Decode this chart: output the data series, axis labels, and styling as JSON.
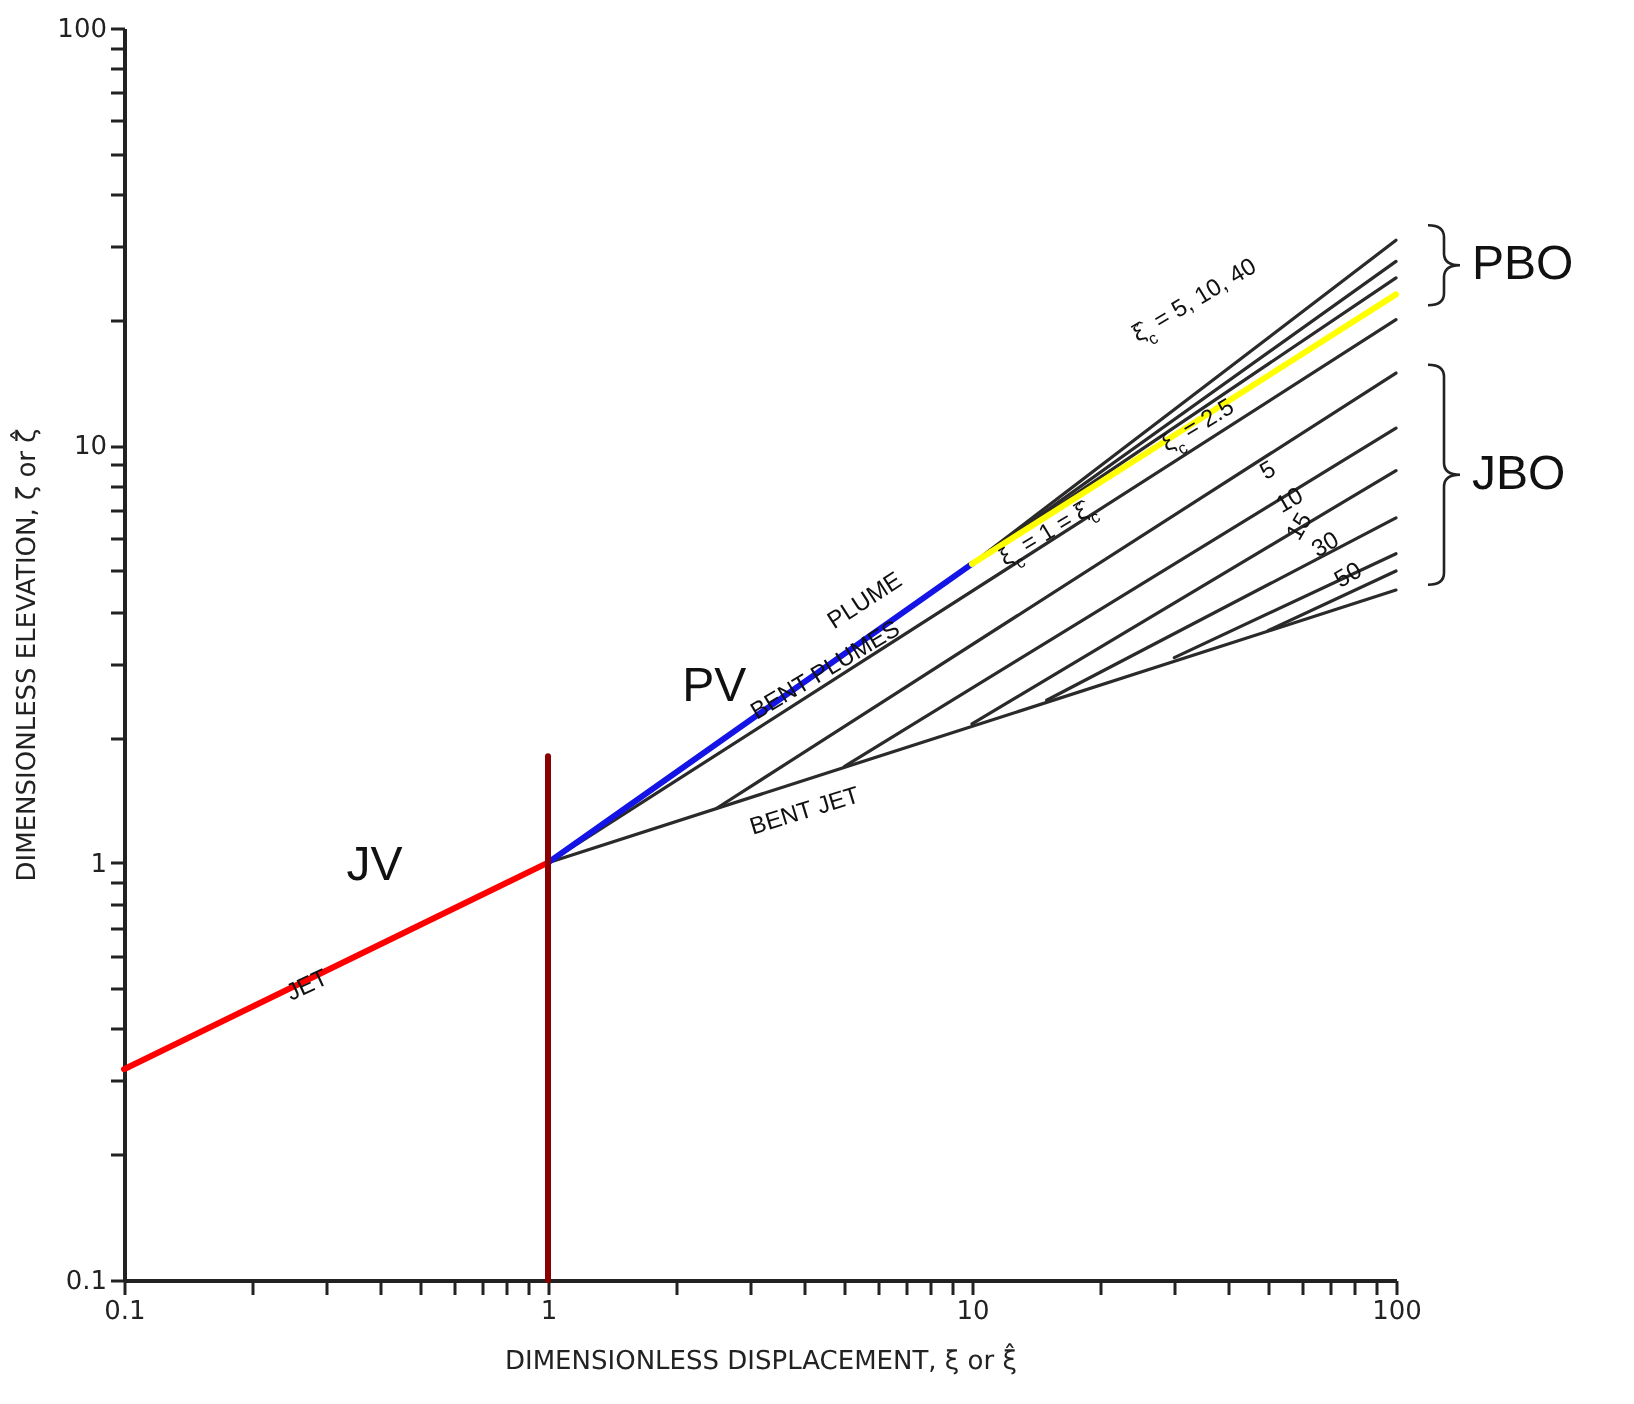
{
  "chart_data": {
    "type": "line",
    "xlabel": "DIMENSIONLESS DISPLACEMENT, ξ or ξ̂",
    "ylabel": "DIMENSIONLESS ELEVATION, ζ or ζ̂",
    "log": "xy",
    "xlim": [
      0.1,
      100
    ],
    "ylim": [
      0.1,
      100
    ],
    "xticks": [
      0.1,
      {
        "value": 0.2,
        "label": null
      },
      {
        "value": 0.3,
        "label": null
      },
      {
        "value": 0.4,
        "label": null
      },
      {
        "value": 0.5,
        "label": null
      },
      {
        "value": 0.6,
        "label": null
      },
      {
        "value": 0.7,
        "label": null
      },
      {
        "value": 0.8,
        "label": null
      },
      {
        "value": 0.9,
        "label": null
      },
      1,
      {
        "value": 2,
        "label": null
      },
      {
        "value": 3,
        "label": null
      },
      {
        "value": 4,
        "label": null
      },
      {
        "value": 5,
        "label": null
      },
      {
        "value": 6,
        "label": null
      },
      {
        "value": 7,
        "label": null
      },
      {
        "value": 8,
        "label": null
      },
      {
        "value": 9,
        "label": null
      },
      10,
      {
        "value": 20,
        "label": null
      },
      {
        "value": 30,
        "label": null
      },
      {
        "value": 40,
        "label": null
      },
      {
        "value": 50,
        "label": null
      },
      {
        "value": 60,
        "label": null
      },
      {
        "value": 70,
        "label": null
      },
      {
        "value": 80,
        "label": null
      },
      {
        "value": 90,
        "label": null
      },
      100
    ],
    "yticks": [
      0.1,
      {
        "value": 0.2,
        "label": null
      },
      {
        "value": 0.3,
        "label": null
      },
      {
        "value": 0.4,
        "label": null
      },
      {
        "value": 0.5,
        "label": null
      },
      {
        "value": 0.6,
        "label": null
      },
      {
        "value": 0.7,
        "label": null
      },
      {
        "value": 0.8,
        "label": null
      },
      {
        "value": 0.9,
        "label": null
      },
      1,
      {
        "value": 2,
        "label": null
      },
      {
        "value": 3,
        "label": null
      },
      {
        "value": 4,
        "label": null
      },
      {
        "value": 5,
        "label": null
      },
      {
        "value": 6,
        "label": null
      },
      {
        "value": 7,
        "label": null
      },
      {
        "value": 8,
        "label": null
      },
      {
        "value": 9,
        "label": null
      },
      10,
      {
        "value": 20,
        "label": null
      },
      {
        "value": 30,
        "label": null
      },
      {
        "value": 40,
        "label": null
      },
      {
        "value": 50,
        "label": null
      },
      {
        "value": 60,
        "label": null
      },
      {
        "value": 70,
        "label": null
      },
      {
        "value": 80,
        "label": null
      },
      {
        "value": 90,
        "label": null
      },
      100
    ],
    "series": [
      {
        "color": "#2a2a2a",
        "x": [
          10,
          100
        ],
        "values": [
          5.2,
          31
        ]
      },
      {
        "color": "#2a2a2a",
        "x": [
          10,
          100
        ],
        "values": [
          5.2,
          27.6
        ]
      },
      {
        "color": "#2a2a2a",
        "x": [
          10,
          100
        ],
        "values": [
          5.2,
          25.2
        ]
      },
      {
        "color": "#2a2a2a",
        "x": [
          1,
          100
        ],
        "values": [
          1,
          20
        ]
      },
      {
        "color": "#2a2a2a",
        "x": [
          2.5,
          100
        ],
        "values": [
          1.35,
          14.9
        ]
      },
      {
        "color": "#2a2a2a",
        "x": [
          5,
          100
        ],
        "values": [
          1.7,
          11
        ]
      },
      {
        "color": "#2a2a2a",
        "x": [
          10,
          100
        ],
        "values": [
          2.15,
          8.7
        ]
      },
      {
        "color": "#2a2a2a",
        "x": [
          15,
          100
        ],
        "values": [
          2.45,
          6.7
        ]
      },
      {
        "color": "#2a2a2a",
        "x": [
          30,
          100
        ],
        "values": [
          3.1,
          5.5
        ]
      },
      {
        "color": "#2a2a2a",
        "x": [
          50,
          100
        ],
        "values": [
          3.6,
          5.0
        ]
      },
      {
        "color": "#2a2a2a",
        "x": [
          1,
          100
        ],
        "values": [
          1,
          4.5
        ]
      },
      {
        "color": "#ff0000",
        "x": [
          0.1,
          1
        ],
        "values": [
          0.32,
          1
        ]
      },
      {
        "color": "#1414e6",
        "x": [
          1,
          10
        ],
        "values": [
          1,
          5.2
        ]
      },
      {
        "color": "#ffff00",
        "x": [
          10,
          100
        ],
        "values": [
          5.2,
          23
        ]
      },
      {
        "color": "#8b0000",
        "x": [
          1,
          1
        ],
        "values": [
          0.1,
          1.8
        ]
      }
    ],
    "annotations": [
      {
        "text": "JET",
        "x": 0.27,
        "y": 0.51
      },
      "PLUME",
      {
        "text": "BENT PLUMES",
        "x": 4.5,
        "y": 2.9
      },
      "BENT JET",
      "ξ̂$_{c}$ = 5, 10, 40",
      {
        "text": "ξ$_{c}$ = 2.5",
        "x": 34,
        "y": 11.2
      },
      "5",
      {
        "text": "10",
        "x": 56,
        "y": 7.4
      },
      {
        "text": "15",
        "x": 59,
        "y": 6.4
      },
      {
        "text": "30",
        "x": 68,
        "y": 5.8
      },
      {
        "text": "50",
        "x": 77,
        "y": 4.9
      },
      {
        "text": "ξ$_{c}$ = 1 = ξ̂$_{c}$",
        "x": 15,
        "y": 6.2
      },
      "JV",
      "PV",
      {
        "text": "PBO",
        "x": 100,
        "y": 27
      },
      {
        "text": "JBO",
        "x": 100,
        "y": 8.5
      }
    ]
  }
}
